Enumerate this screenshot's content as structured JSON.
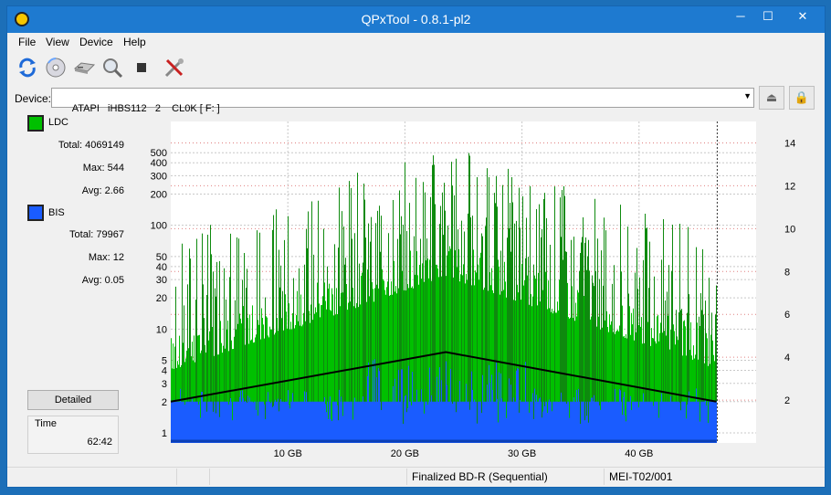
{
  "window": {
    "title": "QPxTool - 0.8.1-pl2",
    "min_label": "─",
    "max_label": "☐",
    "close_label": "✕"
  },
  "menu": {
    "file": "File",
    "view": "View",
    "device": "Device",
    "help": "Help"
  },
  "device": {
    "label": "Device:",
    "value": "ATAPI   iHBS112   2    CL0K [ F: ]",
    "arrow": "▼",
    "eject_glyph": "⏏",
    "lock_glyph": "🔒"
  },
  "legend": {
    "ldc": {
      "name": "LDC",
      "color": "#00c000",
      "total_label": "Total:",
      "total": "4069149",
      "max_label": "Max:",
      "max": "544",
      "avg_label": "Avg:",
      "avg": "2.66"
    },
    "bis": {
      "name": "BIS",
      "color": "#1a5cff",
      "total_label": "Total:",
      "total": "79967",
      "max_label": "Max:",
      "max": "12",
      "avg_label": "Avg:",
      "avg": "0.05"
    }
  },
  "buttons": {
    "detailed": "Detailed"
  },
  "time": {
    "label": "Time",
    "value": "62:42"
  },
  "status": {
    "disc": "Finalized BD-R (Sequential)",
    "media": "MEI-T02/001"
  },
  "chart_data": {
    "type": "area",
    "x_ticks": [
      "10 GB",
      "20 GB",
      "30 GB",
      "40 GB"
    ],
    "x_tick_values": [
      10,
      20,
      30,
      40
    ],
    "xlim": [
      0,
      50
    ],
    "data_end_gb": 46.6,
    "y_left_scale": "log",
    "y_left_ticks": [
      "1",
      "2",
      "3",
      "4",
      "5",
      "10",
      "20",
      "30",
      "40",
      "50",
      "100",
      "200",
      "300",
      "400",
      "500"
    ],
    "y_left_tick_values": [
      1,
      2,
      3,
      4,
      5,
      10,
      20,
      30,
      40,
      50,
      100,
      200,
      300,
      400,
      500
    ],
    "y_left_lim": [
      0.8,
      1000
    ],
    "y_right_ticks": [
      "2",
      "4",
      "6",
      "8",
      "10",
      "12",
      "14"
    ],
    "y_right_tick_values": [
      2,
      4,
      6,
      8,
      10,
      12,
      14
    ],
    "y_right_lim": [
      0,
      15
    ],
    "grid": true,
    "series": [
      {
        "name": "LDC",
        "color": "#00c000",
        "axis": "left",
        "max": 544
      },
      {
        "name": "BIS",
        "color": "#1a5cff",
        "axis": "left",
        "max": 12
      },
      {
        "color": "#000000",
        "axis": "left",
        "x": [
          0,
          23.5,
          46.6
        ],
        "values": [
          2,
          6,
          2
        ]
      }
    ]
  }
}
